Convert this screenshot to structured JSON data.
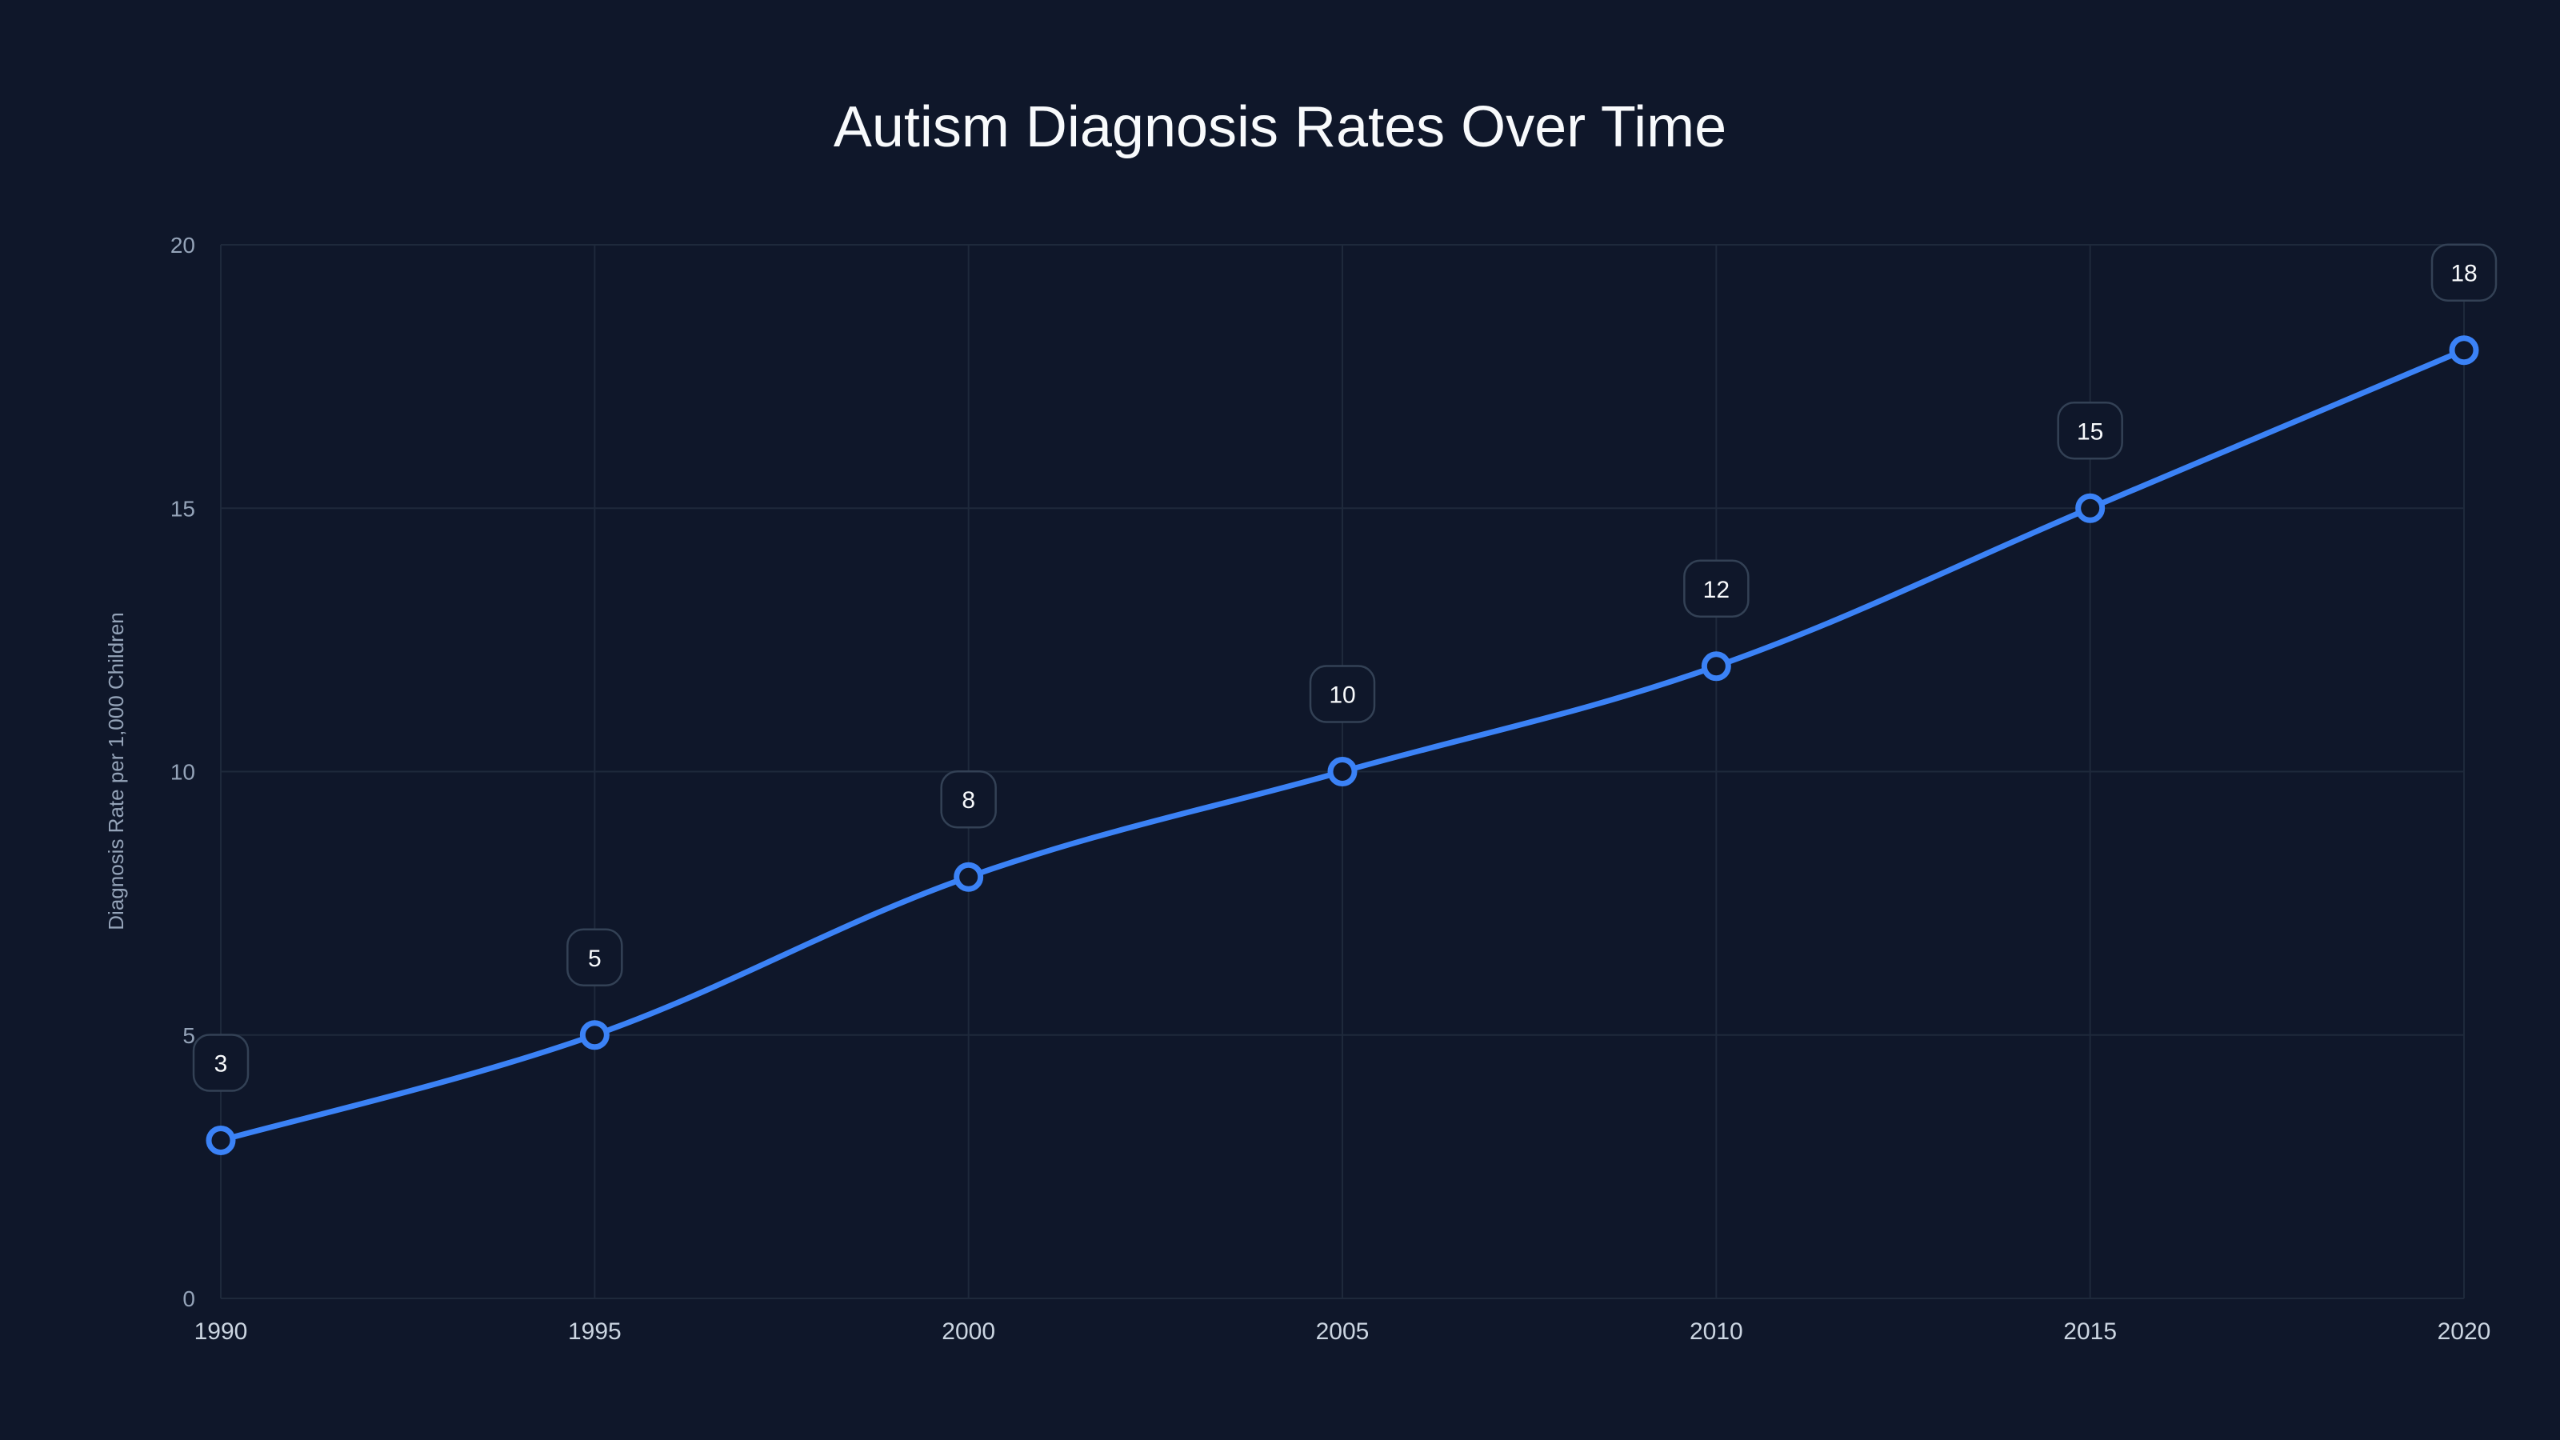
{
  "title": "Autism Diagnosis Rates Over Time",
  "colors": {
    "background": "#0f172a",
    "line": "#3b82f6",
    "grid": "#1e293b",
    "label_box_border": "#334155",
    "label_box_fill": "#0f172a"
  },
  "chart_data": {
    "type": "line",
    "title": "Autism Diagnosis Rates Over Time",
    "xlabel": "",
    "ylabel": "Diagnosis Rate per 1,000 Children",
    "x": [
      1990,
      1995,
      2000,
      2005,
      2010,
      2015,
      2020
    ],
    "series": [
      {
        "name": "Diagnosis Rate",
        "values": [
          3,
          5,
          8,
          10,
          12,
          15,
          18
        ]
      }
    ],
    "ylim": [
      0,
      20
    ],
    "yticks": [
      0,
      5,
      10,
      15,
      20
    ],
    "xticks": [
      "1990",
      "1995",
      "2000",
      "2005",
      "2010",
      "2015",
      "2020"
    ],
    "data_labels": [
      "3",
      "5",
      "8",
      "10",
      "12",
      "15",
      "18"
    ],
    "grid": true,
    "legend": null,
    "smooth": true
  }
}
